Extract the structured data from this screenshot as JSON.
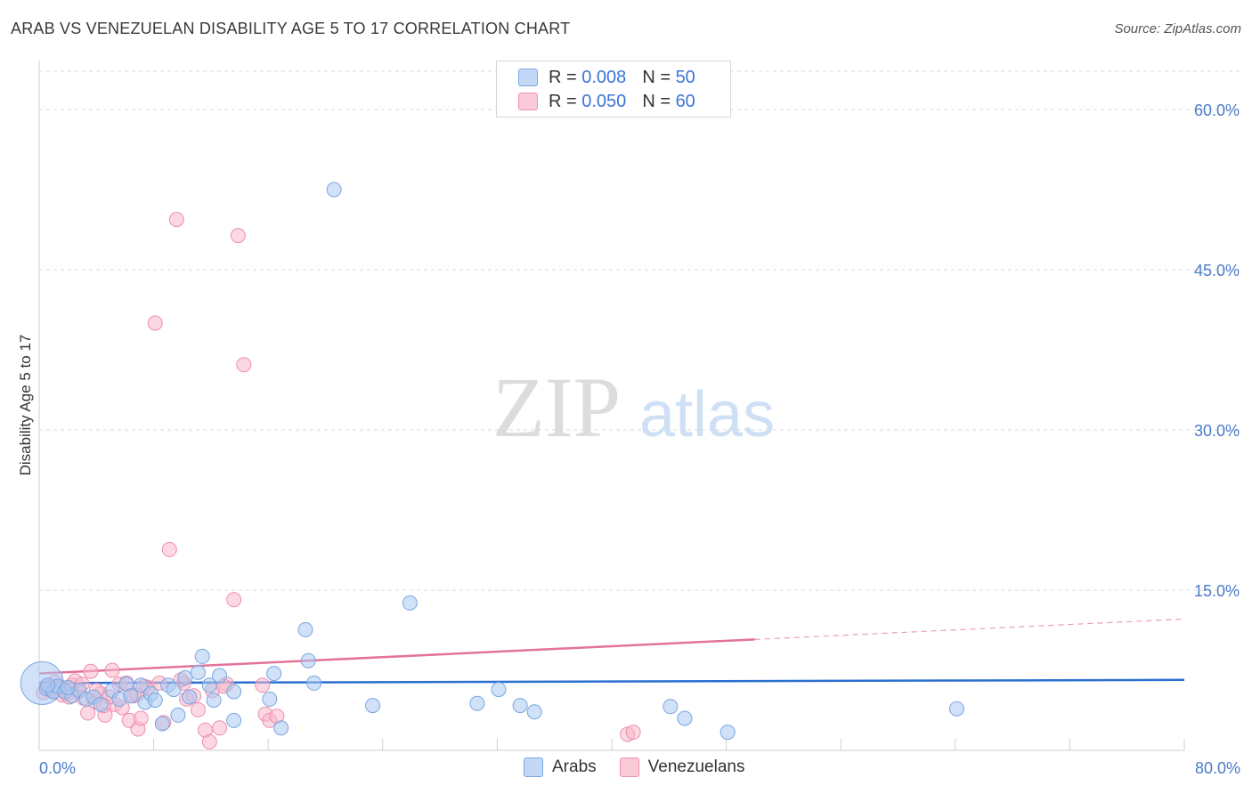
{
  "header": {
    "title": "ARAB VS VENEZUELAN DISABILITY AGE 5 TO 17 CORRELATION CHART",
    "source": "Source: ZipAtlas.com"
  },
  "legend": {
    "arabs": {
      "r_label": "R =",
      "r_value": "0.008",
      "n_label": "N =",
      "n_value": "50",
      "name": "Arabs"
    },
    "venezuelans": {
      "r_label": "R =",
      "r_value": "0.050",
      "n_label": "N =",
      "n_value": "60",
      "name": "Venezuelans"
    }
  },
  "colors": {
    "arabs_fill": "#aac8f2",
    "arabs_stroke": "#7aa6e0",
    "arabs_line": "#2b6fd0",
    "venezuelans_fill": "#f7b8cb",
    "venezuelans_stroke": "#ee8fae",
    "venezuelans_line": "#e3729a",
    "tick_text": "#4a7cc9",
    "grid": "#d9d9d9"
  },
  "watermark": {
    "zip": "ZIP",
    "atlas": "atlas"
  },
  "chart_data": {
    "type": "scatter",
    "title": "ARAB VS VENEZUELAN DISABILITY AGE 5 TO 17 CORRELATION CHART",
    "xlabel": "",
    "ylabel": "Disability Age 5 to 17",
    "xlim": [
      0,
      80
    ],
    "ylim": [
      0,
      65
    ],
    "x_tick_labels": [
      "0.0%",
      "80.0%"
    ],
    "y_ticks": [
      15,
      30,
      45,
      60
    ],
    "y_tick_labels": [
      "15.0%",
      "30.0%",
      "45.0%",
      "60.0%"
    ],
    "x_minor_ticks": [
      8,
      16,
      24,
      32,
      40,
      48,
      56,
      64,
      72,
      80
    ],
    "series": [
      {
        "name": "Arabs",
        "trend": {
          "x": [
            0,
            80
          ],
          "y": [
            6.3,
            6.6
          ],
          "dashed_from": null
        },
        "points": [
          {
            "x": 0.2,
            "y": 6.3,
            "s": 3
          },
          {
            "x": 0.5,
            "y": 5.8,
            "s": 1
          },
          {
            "x": 1.0,
            "y": 5.5,
            "s": 1
          },
          {
            "x": 1.3,
            "y": 6.0,
            "s": 1
          },
          {
            "x": 1.8,
            "y": 5.5,
            "s": 1
          },
          {
            "x": 2.3,
            "y": 5.1,
            "s": 1
          },
          {
            "x": 2.8,
            "y": 5.6,
            "s": 1
          },
          {
            "x": 3.3,
            "y": 4.8,
            "s": 1
          },
          {
            "x": 3.8,
            "y": 5.0,
            "s": 1
          },
          {
            "x": 4.3,
            "y": 4.3,
            "s": 1
          },
          {
            "x": 5.1,
            "y": 5.6,
            "s": 1
          },
          {
            "x": 5.6,
            "y": 4.8,
            "s": 1
          },
          {
            "x": 6.1,
            "y": 6.2,
            "s": 1
          },
          {
            "x": 6.4,
            "y": 5.1,
            "s": 1
          },
          {
            "x": 7.1,
            "y": 6.1,
            "s": 1
          },
          {
            "x": 7.4,
            "y": 4.5,
            "s": 1
          },
          {
            "x": 7.8,
            "y": 5.3,
            "s": 1
          },
          {
            "x": 8.1,
            "y": 4.7,
            "s": 1
          },
          {
            "x": 8.6,
            "y": 2.5,
            "s": 1
          },
          {
            "x": 9.0,
            "y": 6.1,
            "s": 1
          },
          {
            "x": 9.4,
            "y": 5.7,
            "s": 1
          },
          {
            "x": 9.7,
            "y": 3.3,
            "s": 1
          },
          {
            "x": 10.2,
            "y": 6.8,
            "s": 1
          },
          {
            "x": 10.5,
            "y": 5.0,
            "s": 1
          },
          {
            "x": 11.1,
            "y": 7.3,
            "s": 1
          },
          {
            "x": 11.4,
            "y": 8.8,
            "s": 1
          },
          {
            "x": 11.9,
            "y": 6.1,
            "s": 1
          },
          {
            "x": 12.2,
            "y": 4.7,
            "s": 1
          },
          {
            "x": 12.6,
            "y": 7.0,
            "s": 1
          },
          {
            "x": 13.6,
            "y": 2.8,
            "s": 1
          },
          {
            "x": 13.6,
            "y": 5.5,
            "s": 1
          },
          {
            "x": 16.1,
            "y": 4.8,
            "s": 1
          },
          {
            "x": 16.4,
            "y": 7.2,
            "s": 1
          },
          {
            "x": 16.9,
            "y": 2.1,
            "s": 1
          },
          {
            "x": 18.6,
            "y": 11.3,
            "s": 1
          },
          {
            "x": 18.8,
            "y": 8.4,
            "s": 1
          },
          {
            "x": 19.2,
            "y": 6.3,
            "s": 1
          },
          {
            "x": 20.6,
            "y": 52.5,
            "s": 1
          },
          {
            "x": 23.3,
            "y": 4.2,
            "s": 1
          },
          {
            "x": 25.9,
            "y": 13.8,
            "s": 1
          },
          {
            "x": 30.6,
            "y": 4.4,
            "s": 1
          },
          {
            "x": 32.1,
            "y": 5.7,
            "s": 1
          },
          {
            "x": 33.6,
            "y": 4.2,
            "s": 1
          },
          {
            "x": 34.6,
            "y": 3.6,
            "s": 1
          },
          {
            "x": 44.1,
            "y": 4.1,
            "s": 1
          },
          {
            "x": 45.1,
            "y": 3.0,
            "s": 1
          },
          {
            "x": 48.1,
            "y": 1.7,
            "s": 1
          },
          {
            "x": 64.1,
            "y": 3.9,
            "s": 1
          },
          {
            "x": 0.6,
            "y": 6.1,
            "s": 1
          },
          {
            "x": 2.0,
            "y": 5.9,
            "s": 1
          }
        ]
      },
      {
        "name": "Venezuelans",
        "trend": {
          "x": [
            0,
            80
          ],
          "y": [
            7.2,
            12.3
          ],
          "dashed_from": 50
        },
        "points": [
          {
            "x": 0.3,
            "y": 5.4,
            "s": 1
          },
          {
            "x": 0.7,
            "y": 5.7,
            "s": 1
          },
          {
            "x": 1.1,
            "y": 6.4,
            "s": 1
          },
          {
            "x": 1.5,
            "y": 5.9,
            "s": 1
          },
          {
            "x": 1.9,
            "y": 5.3,
            "s": 1
          },
          {
            "x": 2.3,
            "y": 6.1,
            "s": 1
          },
          {
            "x": 2.7,
            "y": 5.5,
            "s": 1
          },
          {
            "x": 3.1,
            "y": 4.9,
            "s": 1
          },
          {
            "x": 3.4,
            "y": 3.5,
            "s": 1
          },
          {
            "x": 3.6,
            "y": 7.4,
            "s": 1
          },
          {
            "x": 3.9,
            "y": 4.6,
            "s": 1
          },
          {
            "x": 4.3,
            "y": 5.3,
            "s": 1
          },
          {
            "x": 4.6,
            "y": 3.3,
            "s": 1
          },
          {
            "x": 5.1,
            "y": 7.5,
            "s": 1
          },
          {
            "x": 5.3,
            "y": 4.3,
            "s": 1
          },
          {
            "x": 5.6,
            "y": 6.2,
            "s": 1
          },
          {
            "x": 6.1,
            "y": 6.3,
            "s": 1
          },
          {
            "x": 6.3,
            "y": 2.8,
            "s": 1
          },
          {
            "x": 6.6,
            "y": 5.1,
            "s": 1
          },
          {
            "x": 6.9,
            "y": 2.0,
            "s": 1
          },
          {
            "x": 7.6,
            "y": 5.9,
            "s": 1
          },
          {
            "x": 8.1,
            "y": 40.0,
            "s": 1
          },
          {
            "x": 8.4,
            "y": 6.3,
            "s": 1
          },
          {
            "x": 8.7,
            "y": 2.6,
            "s": 1
          },
          {
            "x": 9.1,
            "y": 18.8,
            "s": 1
          },
          {
            "x": 9.6,
            "y": 49.7,
            "s": 1
          },
          {
            "x": 10.1,
            "y": 6.3,
            "s": 1
          },
          {
            "x": 10.3,
            "y": 4.8,
            "s": 1
          },
          {
            "x": 11.1,
            "y": 3.8,
            "s": 1
          },
          {
            "x": 11.6,
            "y": 1.9,
            "s": 1
          },
          {
            "x": 11.9,
            "y": 0.8,
            "s": 1
          },
          {
            "x": 12.1,
            "y": 5.6,
            "s": 1
          },
          {
            "x": 12.6,
            "y": 2.1,
            "s": 1
          },
          {
            "x": 13.1,
            "y": 6.2,
            "s": 1
          },
          {
            "x": 13.6,
            "y": 14.1,
            "s": 1
          },
          {
            "x": 13.9,
            "y": 48.2,
            "s": 1
          },
          {
            "x": 14.3,
            "y": 36.1,
            "s": 1
          },
          {
            "x": 15.6,
            "y": 6.1,
            "s": 1
          },
          {
            "x": 15.8,
            "y": 3.4,
            "s": 1
          },
          {
            "x": 16.1,
            "y": 2.8,
            "s": 1
          },
          {
            "x": 16.6,
            "y": 3.2,
            "s": 1
          },
          {
            "x": 41.1,
            "y": 1.5,
            "s": 1
          },
          {
            "x": 41.5,
            "y": 1.7,
            "s": 1
          },
          {
            "x": 0.9,
            "y": 5.6,
            "s": 1
          },
          {
            "x": 1.6,
            "y": 5.2,
            "s": 1
          },
          {
            "x": 2.5,
            "y": 6.5,
            "s": 1
          },
          {
            "x": 4.9,
            "y": 5.0,
            "s": 1
          },
          {
            "x": 5.8,
            "y": 4.0,
            "s": 1
          },
          {
            "x": 7.1,
            "y": 3.0,
            "s": 1
          },
          {
            "x": 7.3,
            "y": 6.0,
            "s": 1
          },
          {
            "x": 0.5,
            "y": 6.0,
            "s": 1
          },
          {
            "x": 1.2,
            "y": 5.8,
            "s": 1
          },
          {
            "x": 3.0,
            "y": 6.2,
            "s": 1
          },
          {
            "x": 4.0,
            "y": 5.6,
            "s": 1
          },
          {
            "x": 6.8,
            "y": 5.2,
            "s": 1
          },
          {
            "x": 9.9,
            "y": 6.6,
            "s": 1
          },
          {
            "x": 10.8,
            "y": 5.1,
            "s": 1
          },
          {
            "x": 12.9,
            "y": 6.0,
            "s": 1
          },
          {
            "x": 2.1,
            "y": 5.0,
            "s": 1
          },
          {
            "x": 4.5,
            "y": 4.2,
            "s": 1
          }
        ]
      }
    ]
  }
}
